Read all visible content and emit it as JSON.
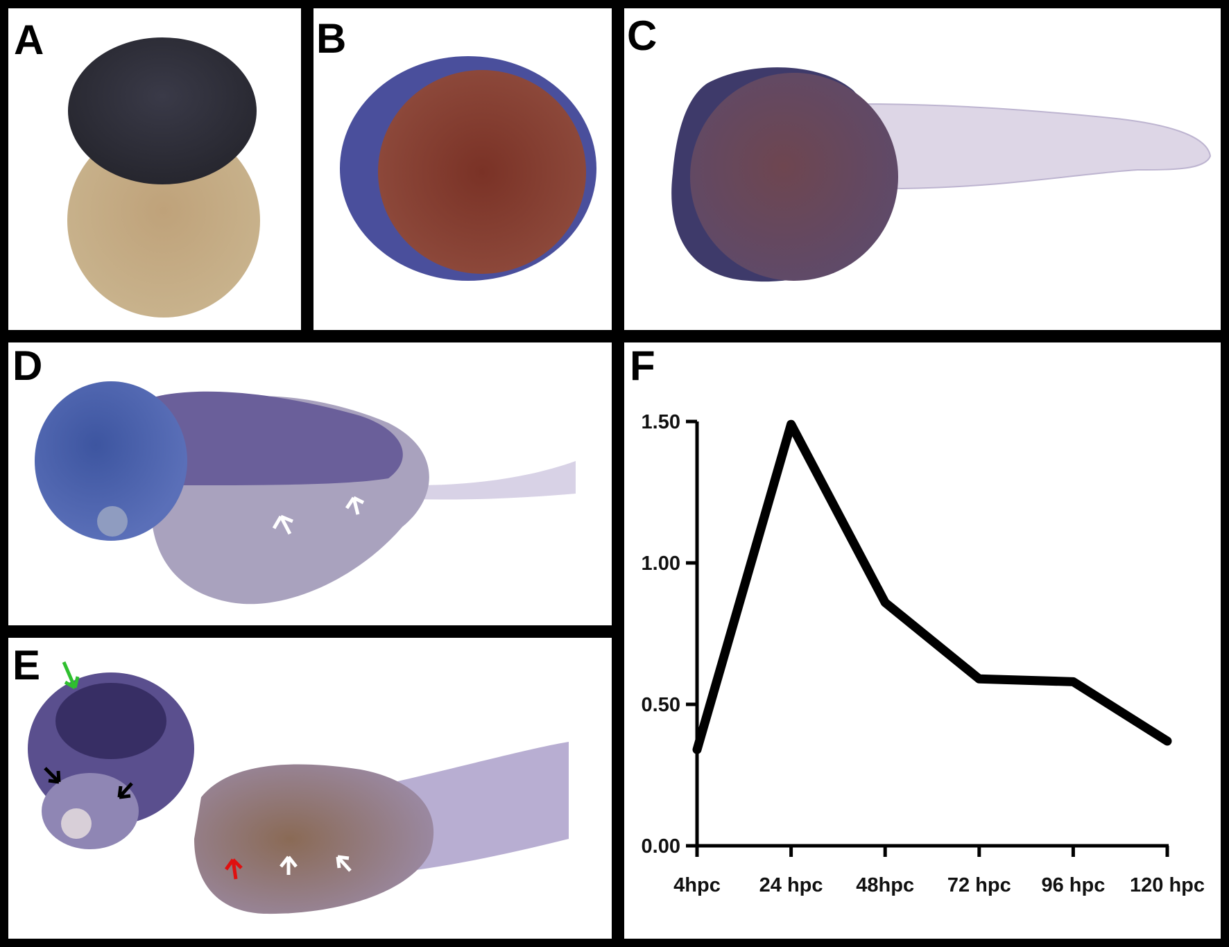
{
  "figure": {
    "panels": [
      {
        "id": "A",
        "label": "A"
      },
      {
        "id": "B",
        "label": "B"
      },
      {
        "id": "C",
        "label": "C"
      },
      {
        "id": "D",
        "label": "D"
      },
      {
        "id": "E",
        "label": "E"
      },
      {
        "id": "F",
        "label": "F"
      }
    ],
    "colors": {
      "border": "#000000",
      "stain": "#3d3a8a",
      "yolk": "#b89a72",
      "arrow_white": "#ffffff",
      "arrow_black": "#000000",
      "arrow_red": "#e01010",
      "arrow_green": "#2fbf2f"
    }
  },
  "chart_data": {
    "type": "line",
    "categories": [
      "4hpc",
      "24 hpc",
      "48hpc",
      "72 hpc",
      "96 hpc",
      "120 hpc"
    ],
    "values": [
      0.34,
      1.49,
      0.86,
      0.59,
      0.58,
      0.37
    ],
    "yticks": [
      "0.00",
      "0.50",
      "1.00",
      "1.50"
    ],
    "ylim": [
      0,
      1.5
    ],
    "title": "",
    "xlabel": "",
    "ylabel": "",
    "grid": false
  }
}
